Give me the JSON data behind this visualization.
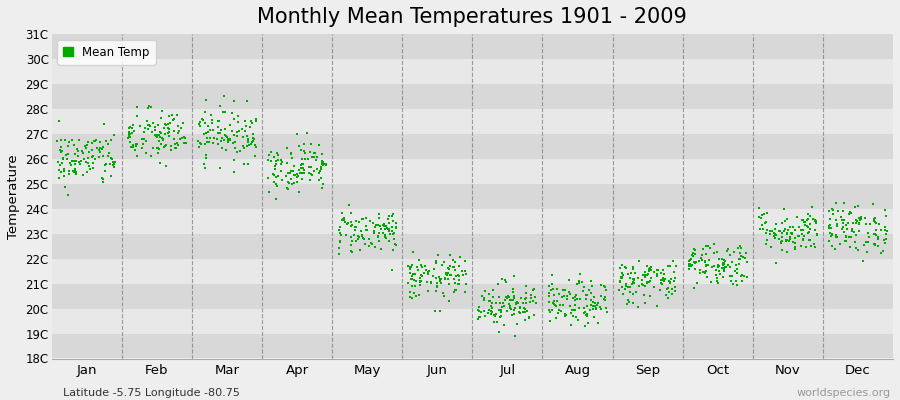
{
  "title": "Monthly Mean Temperatures 1901 - 2009",
  "ylabel": "Temperature",
  "xlabel_bottom": "Latitude -5.75 Longitude -80.75",
  "watermark": "worldspecies.org",
  "legend_label": "Mean Temp",
  "ylim": [
    18,
    31
  ],
  "yticks": [
    18,
    19,
    20,
    21,
    22,
    23,
    24,
    25,
    26,
    27,
    28,
    29,
    30,
    31
  ],
  "months": [
    "Jan",
    "Feb",
    "Mar",
    "Apr",
    "May",
    "Jun",
    "Jul",
    "Aug",
    "Sep",
    "Oct",
    "Nov",
    "Dec"
  ],
  "month_means": [
    26.0,
    26.9,
    27.0,
    25.7,
    23.1,
    21.2,
    20.2,
    20.2,
    21.1,
    21.8,
    23.1,
    23.2
  ],
  "month_stds": [
    0.55,
    0.55,
    0.55,
    0.5,
    0.45,
    0.45,
    0.45,
    0.45,
    0.45,
    0.45,
    0.45,
    0.5
  ],
  "scatter_color": "#00aa00",
  "background_color": "#eeeeee",
  "plot_bg_color": "#eeeeee",
  "title_fontsize": 15,
  "n_years": 109,
  "seed": 42,
  "grid_color": "#666666",
  "band_color_light": "#e8e8e8",
  "band_color_dark": "#d8d8d8"
}
